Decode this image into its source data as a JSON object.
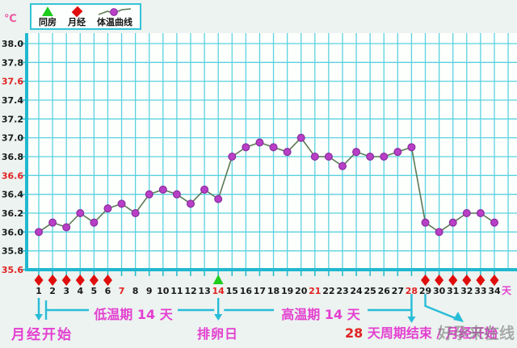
{
  "legend": {
    "items": [
      {
        "icon": "intercourse-triangle",
        "label": "同房"
      },
      {
        "icon": "menses-diamond",
        "label": "月经"
      },
      {
        "icon": "temperature-curve",
        "label": "体温曲线"
      }
    ]
  },
  "y_axis": {
    "unit": "℃",
    "labels": [
      "38.0",
      "37.8",
      "37.6",
      "37.4",
      "37.2",
      "37.0",
      "36.8",
      "36.6",
      "36.4",
      "36.2",
      "36.0",
      "35.8",
      "35.6"
    ],
    "red_labels": [
      "37.6",
      "36.6",
      "35.6"
    ],
    "min": 35.6,
    "max": 38.0,
    "step": 0.2
  },
  "x_axis": {
    "unit": "天",
    "labels": [
      "1",
      "2",
      "3",
      "4",
      "5",
      "6",
      "7",
      "8",
      "9",
      "10",
      "11",
      "12",
      "13",
      "14",
      "15",
      "16",
      "17",
      "18",
      "19",
      "20",
      "21",
      "22",
      "23",
      "24",
      "25",
      "26",
      "27",
      "28",
      "29",
      "30",
      "31",
      "32",
      "33",
      "34"
    ],
    "red_labels": [
      "7",
      "14",
      "21",
      "28"
    ]
  },
  "chart_data": {
    "type": "line",
    "x": [
      1,
      2,
      3,
      4,
      5,
      6,
      7,
      8,
      9,
      10,
      11,
      12,
      13,
      14,
      15,
      16,
      17,
      18,
      19,
      20,
      21,
      22,
      23,
      24,
      25,
      26,
      27,
      28,
      29,
      30,
      31,
      32,
      33,
      34
    ],
    "series": [
      {
        "name": "体温曲线",
        "values": [
          36.0,
          36.1,
          36.05,
          36.2,
          36.1,
          36.25,
          36.3,
          36.2,
          36.4,
          36.45,
          36.4,
          36.3,
          36.45,
          36.35,
          36.8,
          36.9,
          36.95,
          36.9,
          36.85,
          37.0,
          36.8,
          36.8,
          36.7,
          36.85,
          36.8,
          36.8,
          36.85,
          36.9,
          36.1,
          36.0,
          36.1,
          36.2,
          36.2,
          36.1
        ]
      }
    ],
    "ylim": [
      35.6,
      38.0
    ],
    "ytick_step": 0.2,
    "grid": true,
    "legend_position": "top-left",
    "menstruation_days": [
      1,
      2,
      3,
      4,
      5,
      6,
      29,
      30,
      31,
      32,
      33,
      34
    ],
    "ovulation_day": 14
  },
  "annotations": {
    "menses_start": "月经开始",
    "low_phase": "低温期 14 天",
    "ovulation": "排卵日",
    "high_phase": "高温期 14 天",
    "cycle_end_number": "28",
    "cycle_end_text": " 天周期结束 / ",
    "cycle_end_text2": "月经开始"
  },
  "watermark": "好孕来在线",
  "colors": {
    "page_bg": "#ecf3f0",
    "plot_bg": "#fdfffd",
    "grid": "#5ad2e0",
    "axis": "#20b8cf",
    "line": "#5c7a55",
    "point_fill": "#b83fc6",
    "point_stroke": "#8a2d9e",
    "menses_marker": "#e00d0d",
    "ovulation_marker": "#1ecc1e",
    "label": "#1a1a1a",
    "red_label": "#e02222",
    "annotation": "#e43fd0",
    "arrow": "#28bcd8",
    "watermark_gray": "#7d7d7d"
  }
}
